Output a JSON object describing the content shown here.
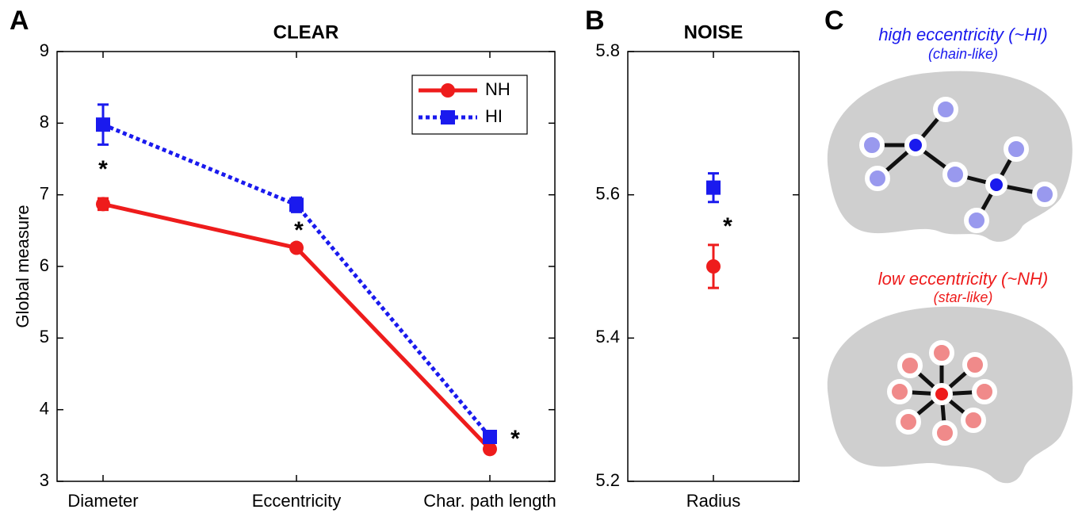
{
  "chart_data": [
    {
      "type": "line",
      "panel_label": "A",
      "title": "CLEAR",
      "ylabel": "Global measure",
      "categories": [
        "Diameter",
        "Eccentricity",
        "Char. path length"
      ],
      "series": [
        {
          "name": "NH",
          "color": "#ee1c1c",
          "marker": "circle",
          "linestyle": "solid",
          "values": [
            6.87,
            6.26,
            3.45
          ],
          "errors": [
            0.08,
            0.05,
            0.04
          ]
        },
        {
          "name": "HI",
          "color": "#1a1aee",
          "marker": "square",
          "linestyle": "dotted",
          "values": [
            7.98,
            6.86,
            3.62
          ],
          "errors": [
            0.28,
            0.1,
            0.05
          ]
        }
      ],
      "ylim": [
        3,
        9
      ],
      "yticks": [
        3,
        4,
        5,
        6,
        7,
        8,
        9
      ],
      "legend": "upper right",
      "annotations": [
        "*",
        "*",
        "*"
      ]
    },
    {
      "type": "scatter",
      "panel_label": "B",
      "title": "NOISE",
      "categories": [
        "Radius"
      ],
      "series": [
        {
          "color": "#ee1c1c",
          "marker": "circle",
          "values": [
            5.5
          ],
          "errors": [
            0.03
          ]
        },
        {
          "color": "#1a1aee",
          "marker": "square",
          "values": [
            5.61
          ],
          "errors": [
            0.02
          ]
        }
      ],
      "ylim": [
        5.2,
        5.8
      ],
      "yticks": [
        5.2,
        5.4,
        5.6,
        5.8
      ],
      "annotations": [
        "*"
      ]
    }
  ],
  "panel_c": {
    "label": "C",
    "high": {
      "title": "high eccentricity (~HI)",
      "subtitle": "(chain-like)"
    },
    "low": {
      "title": "low eccentricity (~NH)",
      "subtitle": "(star-like)"
    }
  }
}
